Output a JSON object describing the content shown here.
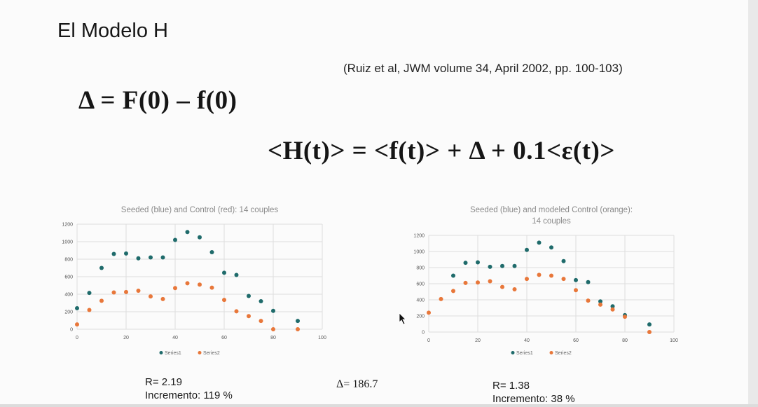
{
  "slide": {
    "title": "El Modelo H",
    "citation": "(Ruiz et al, JWM volume 34, April 2002, pp. 100-103)",
    "equation1": "Δ = F(0) – f(0)",
    "equation2": "<H(t)> = <f(t)> + Δ + 0.1<ε(t)>",
    "delta_label": "Δ= 186.7",
    "left_stats": {
      "r": "R= 2.19",
      "increment": "Incremento: 119 %"
    },
    "right_stats": {
      "r": "R= 1.38",
      "increment": "Incremento: 38 %"
    }
  },
  "colors": {
    "series1": "#1f6b6b",
    "series2": "#e8773a"
  },
  "chart_data": [
    {
      "type": "scatter",
      "title": [
        "Seeded (blue) and Control (red): 14 couples"
      ],
      "xlim": [
        0,
        100
      ],
      "ylim": [
        0,
        1200
      ],
      "xticks": [
        0,
        20,
        40,
        60,
        80,
        100
      ],
      "yticks": [
        0,
        200,
        400,
        600,
        800,
        1000,
        1200
      ],
      "grid": true,
      "legend": "bottom",
      "series": [
        {
          "name": "Series1",
          "x": [
            0,
            5,
            10,
            15,
            20,
            25,
            30,
            35,
            40,
            45,
            50,
            55,
            60,
            65,
            70,
            75,
            80,
            90
          ],
          "y": [
            240,
            415,
            700,
            860,
            865,
            810,
            820,
            820,
            1020,
            1110,
            1050,
            880,
            645,
            620,
            380,
            320,
            210,
            95
          ]
        },
        {
          "name": "Series2",
          "x": [
            0,
            5,
            10,
            15,
            20,
            25,
            30,
            35,
            40,
            45,
            50,
            55,
            60,
            65,
            70,
            75,
            80,
            90
          ],
          "y": [
            55,
            220,
            325,
            420,
            425,
            440,
            375,
            345,
            470,
            525,
            510,
            475,
            335,
            205,
            150,
            95,
            0,
            0
          ]
        }
      ]
    },
    {
      "type": "scatter",
      "title": [
        "Seeded (blue) and modeled Control (orange):",
        "14 couples"
      ],
      "xlim": [
        0,
        100
      ],
      "ylim": [
        0,
        1200
      ],
      "xticks": [
        0,
        20,
        40,
        60,
        80,
        100
      ],
      "yticks": [
        0,
        200,
        400,
        600,
        800,
        1000,
        1200
      ],
      "grid": true,
      "legend": "bottom",
      "series": [
        {
          "name": "Series1",
          "x": [
            10,
            15,
            20,
            25,
            30,
            35,
            40,
            45,
            50,
            55,
            60,
            65,
            70,
            75,
            80,
            90
          ],
          "y": [
            700,
            860,
            865,
            810,
            820,
            820,
            1020,
            1110,
            1050,
            880,
            645,
            620,
            380,
            320,
            210,
            95
          ]
        },
        {
          "name": "Series2",
          "x": [
            0,
            5,
            10,
            15,
            20,
            25,
            30,
            35,
            40,
            45,
            50,
            55,
            60,
            65,
            70,
            75,
            80,
            90
          ],
          "y": [
            240,
            410,
            510,
            610,
            615,
            630,
            560,
            530,
            660,
            710,
            700,
            660,
            520,
            390,
            340,
            280,
            190,
            0
          ]
        }
      ]
    }
  ]
}
